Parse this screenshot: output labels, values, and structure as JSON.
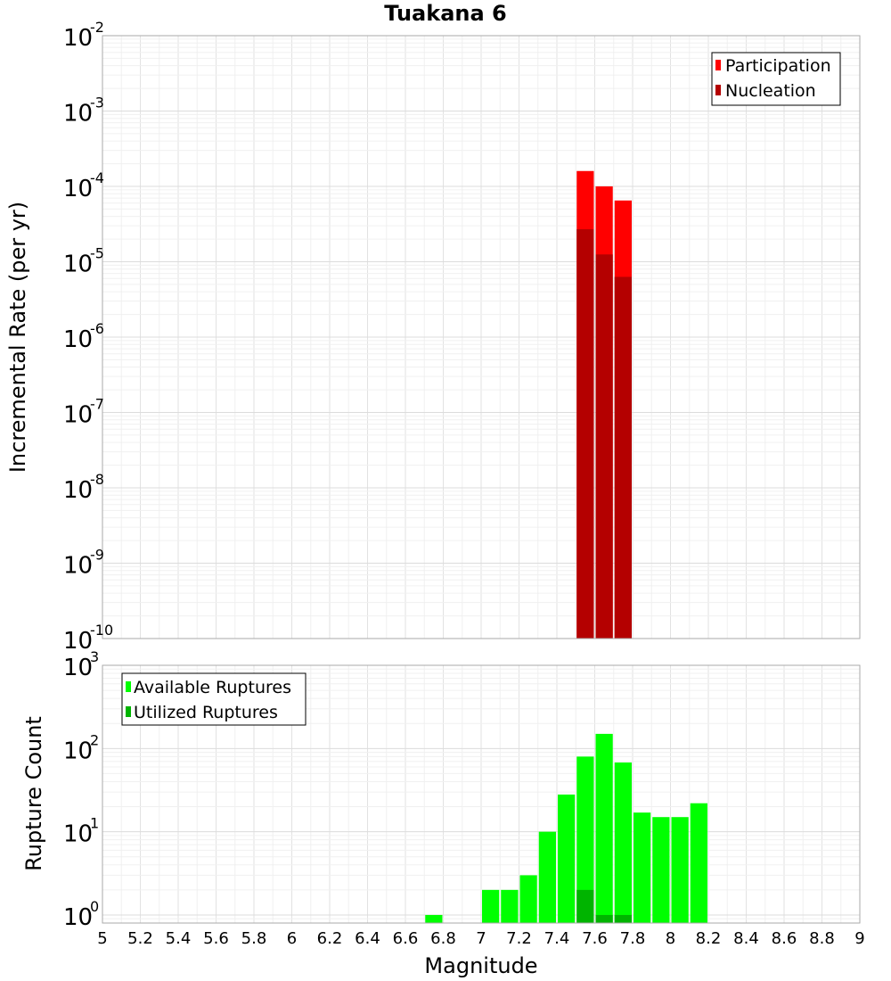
{
  "chart_data": [
    {
      "type": "bar",
      "title": "Tuakana 6",
      "xlabel": "Magnitude",
      "ylabel": "Incremental Rate (per yr)",
      "yscale": "log",
      "ylim": [
        1e-10,
        0.01
      ],
      "xlim": [
        5,
        9
      ],
      "grid": true,
      "legend_position": "top-right",
      "bin_width": 0.1,
      "y_ticks": [
        {
          "base": "10",
          "exp": "-2"
        },
        {
          "base": "10",
          "exp": "-3"
        },
        {
          "base": "10",
          "exp": "-4"
        },
        {
          "base": "10",
          "exp": "-5"
        },
        {
          "base": "10",
          "exp": "-6"
        },
        {
          "base": "10",
          "exp": "-7"
        },
        {
          "base": "10",
          "exp": "-8"
        },
        {
          "base": "10",
          "exp": "-9"
        },
        {
          "base": "10",
          "exp": "-10"
        }
      ],
      "series": [
        {
          "name": "Participation",
          "color": "#ff0000",
          "x": [
            7.55,
            7.65,
            7.75
          ],
          "values": [
            0.00016,
            0.0001,
            6.5e-05
          ]
        },
        {
          "name": "Nucleation",
          "color": "#b40000",
          "x": [
            7.55,
            7.65,
            7.75
          ],
          "values": [
            2.7e-05,
            1.25e-05,
            6.3e-06
          ]
        }
      ]
    },
    {
      "type": "bar",
      "xlabel": "Magnitude",
      "ylabel": "Rupture Count",
      "yscale": "log",
      "ylim": [
        0.8,
        1000
      ],
      "xlim": [
        5,
        9
      ],
      "grid": true,
      "legend_position": "top-left",
      "bin_width": 0.1,
      "x_ticks": [
        "5",
        "5.2",
        "5.4",
        "5.6",
        "5.8",
        "6",
        "6.2",
        "6.4",
        "6.6",
        "6.8",
        "7",
        "7.2",
        "7.4",
        "7.6",
        "7.8",
        "8",
        "8.2",
        "8.4",
        "8.6",
        "8.8",
        "9"
      ],
      "y_ticks": [
        {
          "base": "10",
          "exp": "3"
        },
        {
          "base": "10",
          "exp": "2"
        },
        {
          "base": "10",
          "exp": "1"
        },
        {
          "base": "10",
          "exp": "0"
        }
      ],
      "series": [
        {
          "name": "Available Ruptures",
          "color": "#00ff00",
          "x": [
            6.75,
            7.05,
            7.15,
            7.25,
            7.35,
            7.45,
            7.55,
            7.65,
            7.75,
            7.85,
            7.95,
            8.05,
            8.15
          ],
          "values": [
            1,
            2,
            2,
            3,
            10,
            28,
            80,
            150,
            68,
            17,
            15,
            15,
            22
          ]
        },
        {
          "name": "Utilized Ruptures",
          "color": "#00b400",
          "x": [
            7.55,
            7.65,
            7.75
          ],
          "values": [
            2,
            1,
            1
          ]
        }
      ]
    }
  ]
}
